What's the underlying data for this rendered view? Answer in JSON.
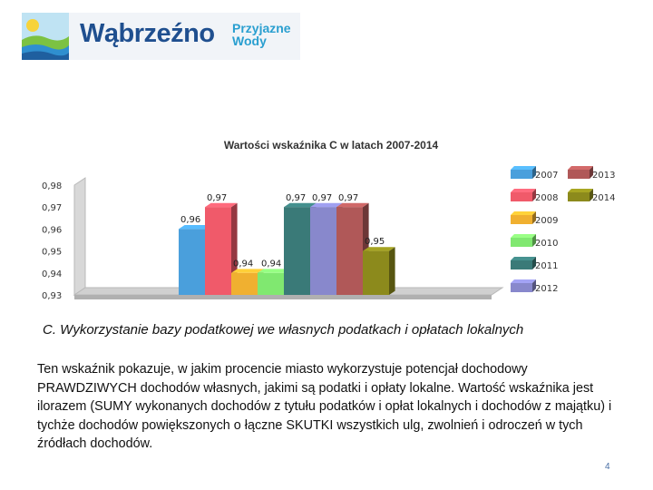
{
  "logo": {
    "name": "Wąbrzeźno",
    "tagline_line1": "Przyjazne",
    "tagline_line2": "Wody"
  },
  "chart_data": {
    "type": "bar",
    "title": "Wartości wskaźnika C w latach 2007-2014",
    "categories": [
      "2007",
      "2008",
      "2009",
      "2010",
      "2011",
      "2012",
      "2013",
      "2014"
    ],
    "values": [
      0.96,
      0.97,
      0.94,
      0.94,
      0.97,
      0.97,
      0.97,
      0.95
    ],
    "value_labels": [
      "0,96",
      "0,97",
      "0,94",
      "0,94",
      "0,97",
      "0,97",
      "0,97",
      "0,95"
    ],
    "colors": [
      "#4a9fdc",
      "#f05a6a",
      "#f0b030",
      "#80e870",
      "#3a7a78",
      "#8888cc",
      "#b05858",
      "#8c8a1c"
    ],
    "ylim": [
      0.93,
      0.98
    ],
    "yticks": [
      "0,93",
      "0,94",
      "0,95",
      "0,96",
      "0,97",
      "0,98"
    ],
    "legend": [
      "2007",
      "2008",
      "2009",
      "2010",
      "2011",
      "2012",
      "2013",
      "2014"
    ],
    "legend_placement": "right",
    "grid": false,
    "style": "3d"
  },
  "section_heading": "C. Wykorzystanie bazy podatkowej we własnych podatkach i opłatach lokalnych",
  "body_text": "Ten wskaźnik pokazuje, w jakim procencie miasto wykorzystuje potencjał dochodowy PRAWDZIWYCH dochodów własnych, jakimi są podatki i opłaty lokalne. Wartość wskaźnika jest ilorazem (SUMY wykonanych dochodów z tytułu podatków i opłat lokalnych i dochodów z majątku) i tychże dochodów powiększonych o łączne SKUTKI wszystkich ulg, zwolnień i odroczeń w tych źródłach dochodów.",
  "page_number": "4"
}
